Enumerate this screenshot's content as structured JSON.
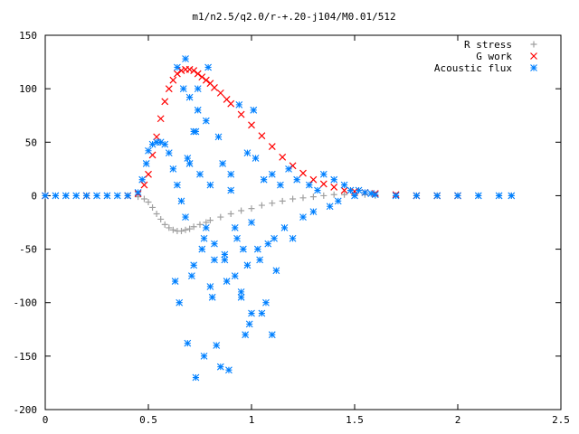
{
  "chart_data": {
    "type": "scatter",
    "title": "m1/n2.5/q2.0/r-+.20-j104/M0.01/512",
    "xlabel": "",
    "ylabel": "",
    "xlim": [
      0,
      2.5
    ],
    "ylim": [
      -200,
      150
    ],
    "x_ticks": [
      0,
      0.5,
      1,
      1.5,
      2,
      2.5
    ],
    "x_tick_labels": [
      "0",
      "0.5",
      "1",
      "1.5",
      "2",
      "2.5"
    ],
    "y_ticks": [
      -200,
      -150,
      -100,
      -50,
      0,
      50,
      100,
      150
    ],
    "y_tick_labels": [
      "-200",
      "-150",
      "-100",
      "-50",
      "0",
      "50",
      "100",
      "150"
    ],
    "grid": false,
    "legend_position": "top-right",
    "series": [
      {
        "name": "R stress",
        "marker": "plus",
        "color": "#a0a0a0",
        "x": [
          0.0,
          0.1,
          0.2,
          0.3,
          0.4,
          0.45,
          0.48,
          0.5,
          0.52,
          0.54,
          0.56,
          0.58,
          0.6,
          0.62,
          0.64,
          0.66,
          0.68,
          0.7,
          0.72,
          0.75,
          0.78,
          0.8,
          0.85,
          0.9,
          0.95,
          1.0,
          1.05,
          1.1,
          1.15,
          1.2,
          1.25,
          1.3,
          1.35,
          1.4,
          1.45,
          1.5,
          1.55,
          1.6,
          1.7,
          1.8,
          1.9,
          2.0,
          2.1,
          2.2,
          2.26
        ],
        "y": [
          0,
          0,
          0,
          0,
          0,
          -1,
          -3,
          -6,
          -11,
          -17,
          -22,
          -27,
          -30,
          -32,
          -33,
          -33,
          -32,
          -31,
          -29,
          -27,
          -25,
          -23,
          -20,
          -17,
          -14,
          -12,
          -9,
          -7,
          -5,
          -3,
          -2,
          -1,
          0,
          1,
          1,
          1,
          1,
          0,
          0,
          0,
          0,
          0,
          0,
          0,
          0
        ]
      },
      {
        "name": "G work",
        "marker": "cross",
        "color": "#ff0000",
        "x": [
          0.0,
          0.2,
          0.4,
          0.45,
          0.48,
          0.5,
          0.52,
          0.54,
          0.56,
          0.58,
          0.6,
          0.62,
          0.64,
          0.66,
          0.68,
          0.7,
          0.72,
          0.74,
          0.76,
          0.78,
          0.8,
          0.82,
          0.85,
          0.88,
          0.9,
          0.95,
          1.0,
          1.05,
          1.1,
          1.15,
          1.2,
          1.25,
          1.3,
          1.35,
          1.4,
          1.45,
          1.5,
          1.55,
          1.6,
          1.7,
          1.8,
          1.9,
          2.0
        ],
        "y": [
          0,
          0,
          0,
          2,
          10,
          20,
          38,
          55,
          72,
          88,
          100,
          108,
          114,
          117,
          118,
          118,
          117,
          114,
          111,
          108,
          105,
          101,
          96,
          90,
          86,
          76,
          66,
          56,
          46,
          36,
          28,
          21,
          15,
          11,
          8,
          5,
          4,
          3,
          2,
          1,
          0,
          0,
          0
        ]
      },
      {
        "name": "Acoustic flux",
        "marker": "star",
        "color": "#0080ff",
        "x": [
          0.0,
          0.05,
          0.1,
          0.15,
          0.2,
          0.25,
          0.3,
          0.35,
          0.4,
          0.45,
          0.47,
          0.49,
          0.5,
          0.52,
          0.54,
          0.56,
          0.58,
          0.6,
          0.62,
          0.64,
          0.66,
          0.68,
          0.7,
          0.72,
          0.74,
          0.75,
          0.77,
          0.78,
          0.8,
          0.82,
          0.84,
          0.86,
          0.88,
          0.9,
          0.92,
          0.94,
          0.96,
          0.98,
          1.0,
          1.02,
          1.04,
          1.06,
          1.08,
          1.1,
          1.12,
          1.14,
          1.16,
          1.18,
          1.2,
          1.22,
          1.25,
          1.28,
          1.3,
          1.32,
          1.35,
          1.38,
          1.4,
          1.42,
          1.45,
          1.48,
          1.5,
          1.52,
          1.55,
          1.58,
          1.6,
          1.7,
          1.8,
          1.9,
          2.0,
          2.1,
          2.2,
          2.26,
          0.63,
          0.65,
          0.67,
          0.69,
          0.71,
          0.73,
          0.76,
          0.79,
          0.81,
          0.83,
          0.87,
          0.89,
          0.93,
          0.95,
          0.99,
          1.01,
          1.03,
          1.07,
          1.11,
          0.68,
          0.72,
          0.77,
          0.85,
          0.97,
          1.05,
          0.64,
          0.7,
          0.74,
          0.78,
          0.82,
          0.9,
          0.95,
          1.0,
          1.1,
          0.69,
          0.73,
          0.8,
          0.87,
          0.92,
          0.98
        ],
        "y": [
          0,
          0,
          0,
          0,
          0,
          0,
          0,
          0,
          0,
          3,
          15,
          30,
          42,
          48,
          50,
          50,
          48,
          40,
          25,
          10,
          -5,
          -20,
          30,
          60,
          80,
          20,
          -40,
          70,
          10,
          -60,
          55,
          30,
          -80,
          20,
          -30,
          85,
          -50,
          40,
          -25,
          35,
          -60,
          15,
          -45,
          20,
          -70,
          10,
          -30,
          25,
          -40,
          15,
          -20,
          10,
          -15,
          5,
          20,
          -10,
          15,
          -5,
          10,
          5,
          0,
          5,
          3,
          2,
          1,
          0,
          0,
          0,
          0,
          0,
          0,
          0,
          -80,
          -100,
          100,
          35,
          -75,
          60,
          -50,
          120,
          -95,
          -140,
          -60,
          -163,
          -40,
          -90,
          -120,
          80,
          -50,
          -100,
          -40,
          128,
          -65,
          -150,
          -160,
          -130,
          -110,
          120,
          92,
          100,
          -30,
          -45,
          5,
          -95,
          -110,
          -130,
          -138,
          -170,
          -85,
          -55,
          -75,
          -65
        ]
      }
    ]
  }
}
